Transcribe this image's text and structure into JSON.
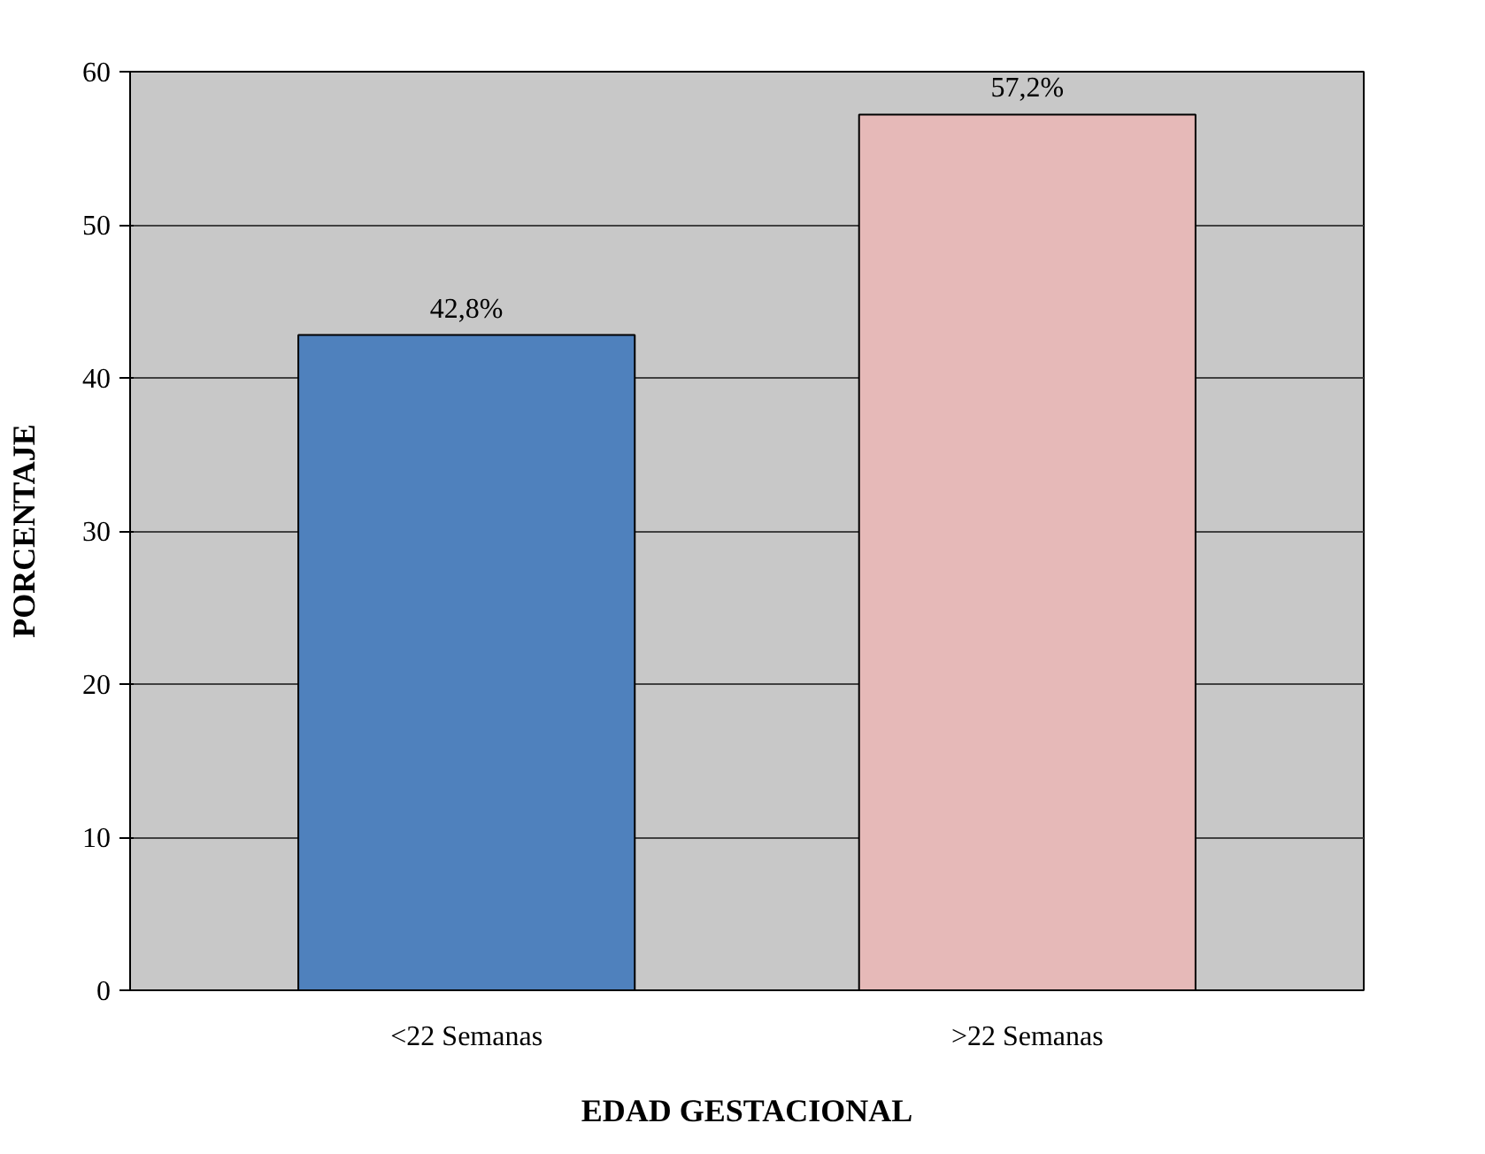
{
  "chart_data": {
    "type": "bar",
    "xlabel": "EDAD GESTACIONAL",
    "ylabel": "PORCENTAJE",
    "categories": [
      "<22 Semanas",
      ">22 Semanas"
    ],
    "values": [
      42.8,
      57.2
    ],
    "colors": [
      "#4f81bd",
      "#e6b9b8"
    ],
    "value_labels": [
      "42,8%",
      "57,2%"
    ],
    "ylim": [
      0,
      60
    ],
    "yticks": [
      0,
      10,
      20,
      30,
      40,
      50,
      60
    ],
    "grid": "y"
  }
}
